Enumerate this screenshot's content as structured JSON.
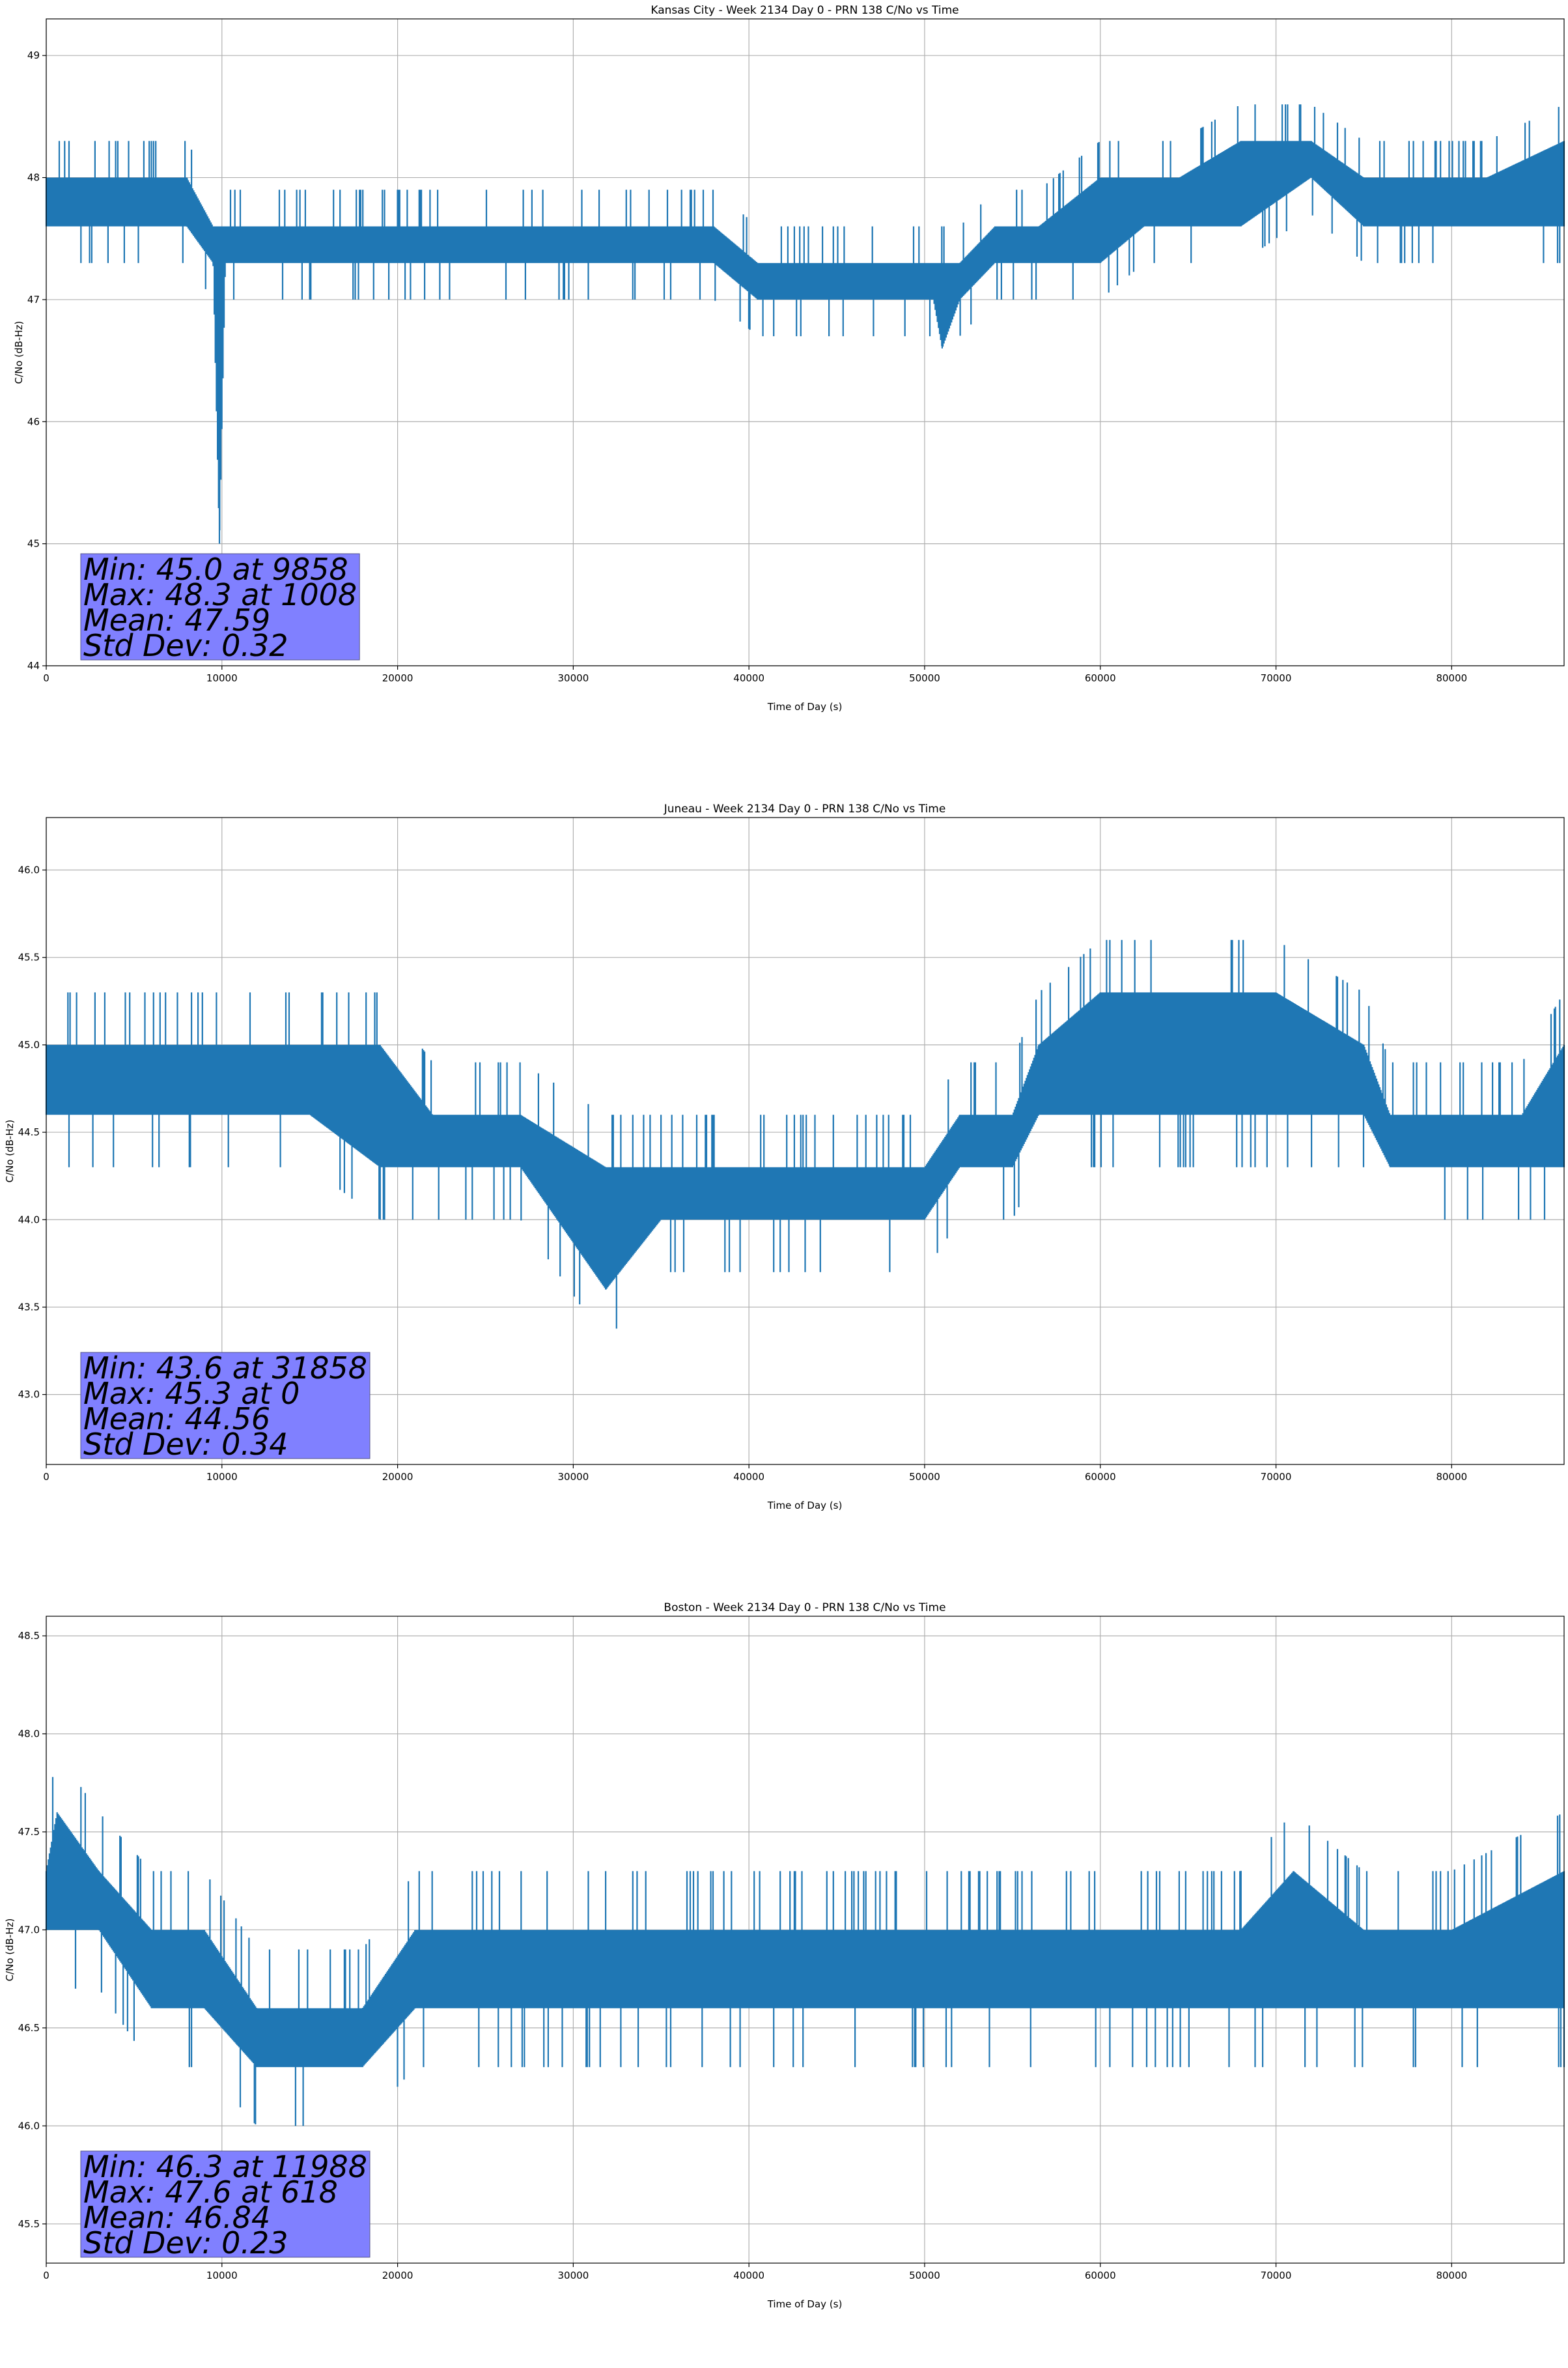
{
  "chart_data": [
    {
      "type": "line",
      "title": "Kansas City - Week 2134 Day 0 - PRN 138 C/No vs Time",
      "xlabel": "Time of Day (s)",
      "ylabel": "C/No (dB-Hz)",
      "xlim": [
        0,
        86400
      ],
      "ylim": [
        44.0,
        49.3
      ],
      "xticks": [
        0,
        10000,
        20000,
        30000,
        40000,
        50000,
        60000,
        70000,
        80000
      ],
      "xtick_labels": [
        "0",
        "10000",
        "20000",
        "30000",
        "40000",
        "50000",
        "60000",
        "70000",
        "80000"
      ],
      "yticks": [
        44,
        45,
        46,
        47,
        48,
        49
      ],
      "ytick_labels": [
        "44",
        "45",
        "46",
        "47",
        "48",
        "49"
      ],
      "grid": true,
      "line_color": "#1f77b4",
      "series": [
        {
          "x": [
            0,
            4000,
            8000,
            9500,
            9858,
            10200,
            14000,
            20000,
            26000,
            32000,
            38000,
            40500,
            43000,
            47000,
            50500,
            51000,
            52000,
            54000,
            56500,
            60000,
            62500,
            64500,
            68000,
            72000,
            75000,
            78000,
            82000,
            86400
          ],
          "low": [
            47.6,
            47.6,
            47.6,
            47.3,
            45.0,
            47.3,
            47.3,
            47.3,
            47.3,
            47.3,
            47.3,
            47.0,
            47.0,
            47.0,
            47.0,
            46.6,
            47.0,
            47.3,
            47.3,
            47.3,
            47.6,
            47.6,
            47.6,
            48.0,
            47.6,
            47.6,
            47.6,
            47.6
          ],
          "high": [
            48.0,
            48.0,
            48.0,
            47.6,
            47.6,
            47.6,
            47.6,
            47.6,
            47.6,
            47.6,
            47.6,
            47.3,
            47.3,
            47.3,
            47.3,
            47.3,
            47.3,
            47.6,
            47.6,
            48.0,
            48.0,
            48.0,
            48.3,
            48.3,
            48.0,
            48.0,
            48.0,
            48.3
          ]
        }
      ],
      "stats": {
        "min": "Min: 45.0 at 9858",
        "max": "Max: 48.3 at 1008",
        "mean": "Mean: 47.59",
        "std": "Std Dev: 0.32"
      },
      "stats_box_color": "#8080ff"
    },
    {
      "type": "line",
      "title": "Juneau - Week 2134 Day 0 - PRN 138 C/No vs Time",
      "xlabel": "Time of Day (s)",
      "ylabel": "C/No (dB-Hz)",
      "xlim": [
        0,
        86400
      ],
      "ylim": [
        42.6,
        46.3
      ],
      "xticks": [
        0,
        10000,
        20000,
        30000,
        40000,
        50000,
        60000,
        70000,
        80000
      ],
      "xtick_labels": [
        "0",
        "10000",
        "20000",
        "30000",
        "40000",
        "50000",
        "60000",
        "70000",
        "80000"
      ],
      "yticks": [
        43.0,
        43.5,
        44.0,
        44.5,
        45.0,
        45.5,
        46.0
      ],
      "ytick_labels": [
        "43.0",
        "43.5",
        "44.0",
        "44.5",
        "45.0",
        "45.5",
        "46.0"
      ],
      "grid": true,
      "line_color": "#1f77b4",
      "series": [
        {
          "x": [
            0,
            5000,
            10000,
            15000,
            19000,
            22000,
            27000,
            31858,
            35000,
            40000,
            45000,
            50000,
            52000,
            55000,
            56500,
            60000,
            65000,
            70000,
            75000,
            76500,
            80000,
            84000,
            86400
          ],
          "low": [
            44.6,
            44.6,
            44.6,
            44.6,
            44.3,
            44.3,
            44.3,
            43.6,
            44.0,
            44.0,
            44.0,
            44.0,
            44.3,
            44.3,
            44.6,
            44.6,
            44.6,
            44.6,
            44.6,
            44.3,
            44.3,
            44.3,
            44.3
          ],
          "high": [
            45.0,
            45.0,
            45.0,
            45.0,
            45.0,
            44.6,
            44.6,
            44.3,
            44.3,
            44.3,
            44.3,
            44.3,
            44.6,
            44.6,
            45.0,
            45.3,
            45.3,
            45.3,
            45.0,
            44.6,
            44.6,
            44.6,
            45.0
          ]
        }
      ],
      "stats": {
        "min": "Min: 43.6 at 31858",
        "max": "Max: 45.3 at 0",
        "mean": "Mean: 44.56",
        "std": "Std Dev: 0.34"
      },
      "stats_box_color": "#8080ff"
    },
    {
      "type": "line",
      "title": "Boston - Week 2134 Day 0 - PRN 138 C/No vs Time",
      "xlabel": "Time of Day (s)",
      "ylabel": "C/No (dB-Hz)",
      "xlim": [
        0,
        86400
      ],
      "ylim": [
        45.3,
        48.6
      ],
      "xticks": [
        0,
        10000,
        20000,
        30000,
        40000,
        50000,
        60000,
        70000,
        80000
      ],
      "xtick_labels": [
        "0",
        "10000",
        "20000",
        "30000",
        "40000",
        "50000",
        "60000",
        "70000",
        "80000"
      ],
      "yticks": [
        45.5,
        46.0,
        46.5,
        47.0,
        47.5,
        48.0,
        48.5
      ],
      "ytick_labels": [
        "45.5",
        "46.0",
        "46.5",
        "47.0",
        "47.5",
        "48.0",
        "48.5"
      ],
      "grid": true,
      "line_color": "#1f77b4",
      "series": [
        {
          "x": [
            0,
            618,
            3000,
            6000,
            9000,
            11988,
            14000,
            18000,
            21000,
            26000,
            30000,
            34000,
            38000,
            42000,
            47000,
            50000,
            55000,
            60000,
            65000,
            68000,
            71000,
            75000,
            80000,
            86400
          ],
          "low": [
            47.0,
            47.0,
            47.0,
            46.6,
            46.6,
            46.3,
            46.3,
            46.3,
            46.6,
            46.6,
            46.6,
            46.6,
            46.6,
            46.6,
            46.6,
            46.6,
            46.6,
            46.6,
            46.6,
            46.6,
            46.6,
            46.6,
            46.6,
            46.6
          ],
          "high": [
            47.3,
            47.6,
            47.3,
            47.0,
            47.0,
            46.6,
            46.6,
            46.6,
            47.0,
            47.0,
            47.0,
            47.0,
            47.0,
            47.0,
            47.0,
            47.0,
            47.0,
            47.0,
            47.0,
            47.0,
            47.3,
            47.0,
            47.0,
            47.3
          ]
        }
      ],
      "stats": {
        "min": "Min: 46.3 at 11988",
        "max": "Max: 47.6 at 618",
        "mean": "Mean: 46.84",
        "std": "Std Dev: 0.23"
      },
      "stats_box_color": "#8080ff"
    }
  ]
}
